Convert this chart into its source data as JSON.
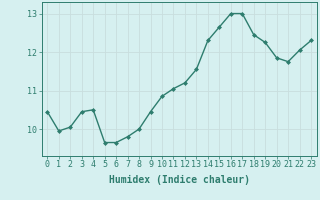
{
  "x": [
    0,
    1,
    2,
    3,
    4,
    5,
    6,
    7,
    8,
    9,
    10,
    11,
    12,
    13,
    14,
    15,
    16,
    17,
    18,
    19,
    20,
    21,
    22,
    23
  ],
  "y": [
    10.45,
    9.95,
    10.05,
    10.45,
    10.5,
    9.65,
    9.65,
    9.8,
    10.0,
    10.45,
    10.85,
    11.05,
    11.2,
    11.55,
    12.3,
    12.65,
    13.0,
    13.0,
    12.45,
    12.25,
    11.85,
    11.75,
    12.05,
    12.3
  ],
  "xlabel": "Humidex (Indice chaleur)",
  "xlim": [
    -0.5,
    23.5
  ],
  "ylim": [
    9.3,
    13.3
  ],
  "yticks": [
    10,
    11,
    12,
    13
  ],
  "xticks": [
    0,
    1,
    2,
    3,
    4,
    5,
    6,
    7,
    8,
    9,
    10,
    11,
    12,
    13,
    14,
    15,
    16,
    17,
    18,
    19,
    20,
    21,
    22,
    23
  ],
  "line_color": "#2e7d6e",
  "marker_color": "#2e7d6e",
  "bg_color": "#d6f0f0",
  "grid_color": "#c8dede",
  "axis_color": "#2e7d6e",
  "label_color": "#2e7d6e",
  "font_size": 6,
  "xlabel_font_size": 7,
  "marker": "D",
  "marker_size": 2.0,
  "line_width": 1.0
}
